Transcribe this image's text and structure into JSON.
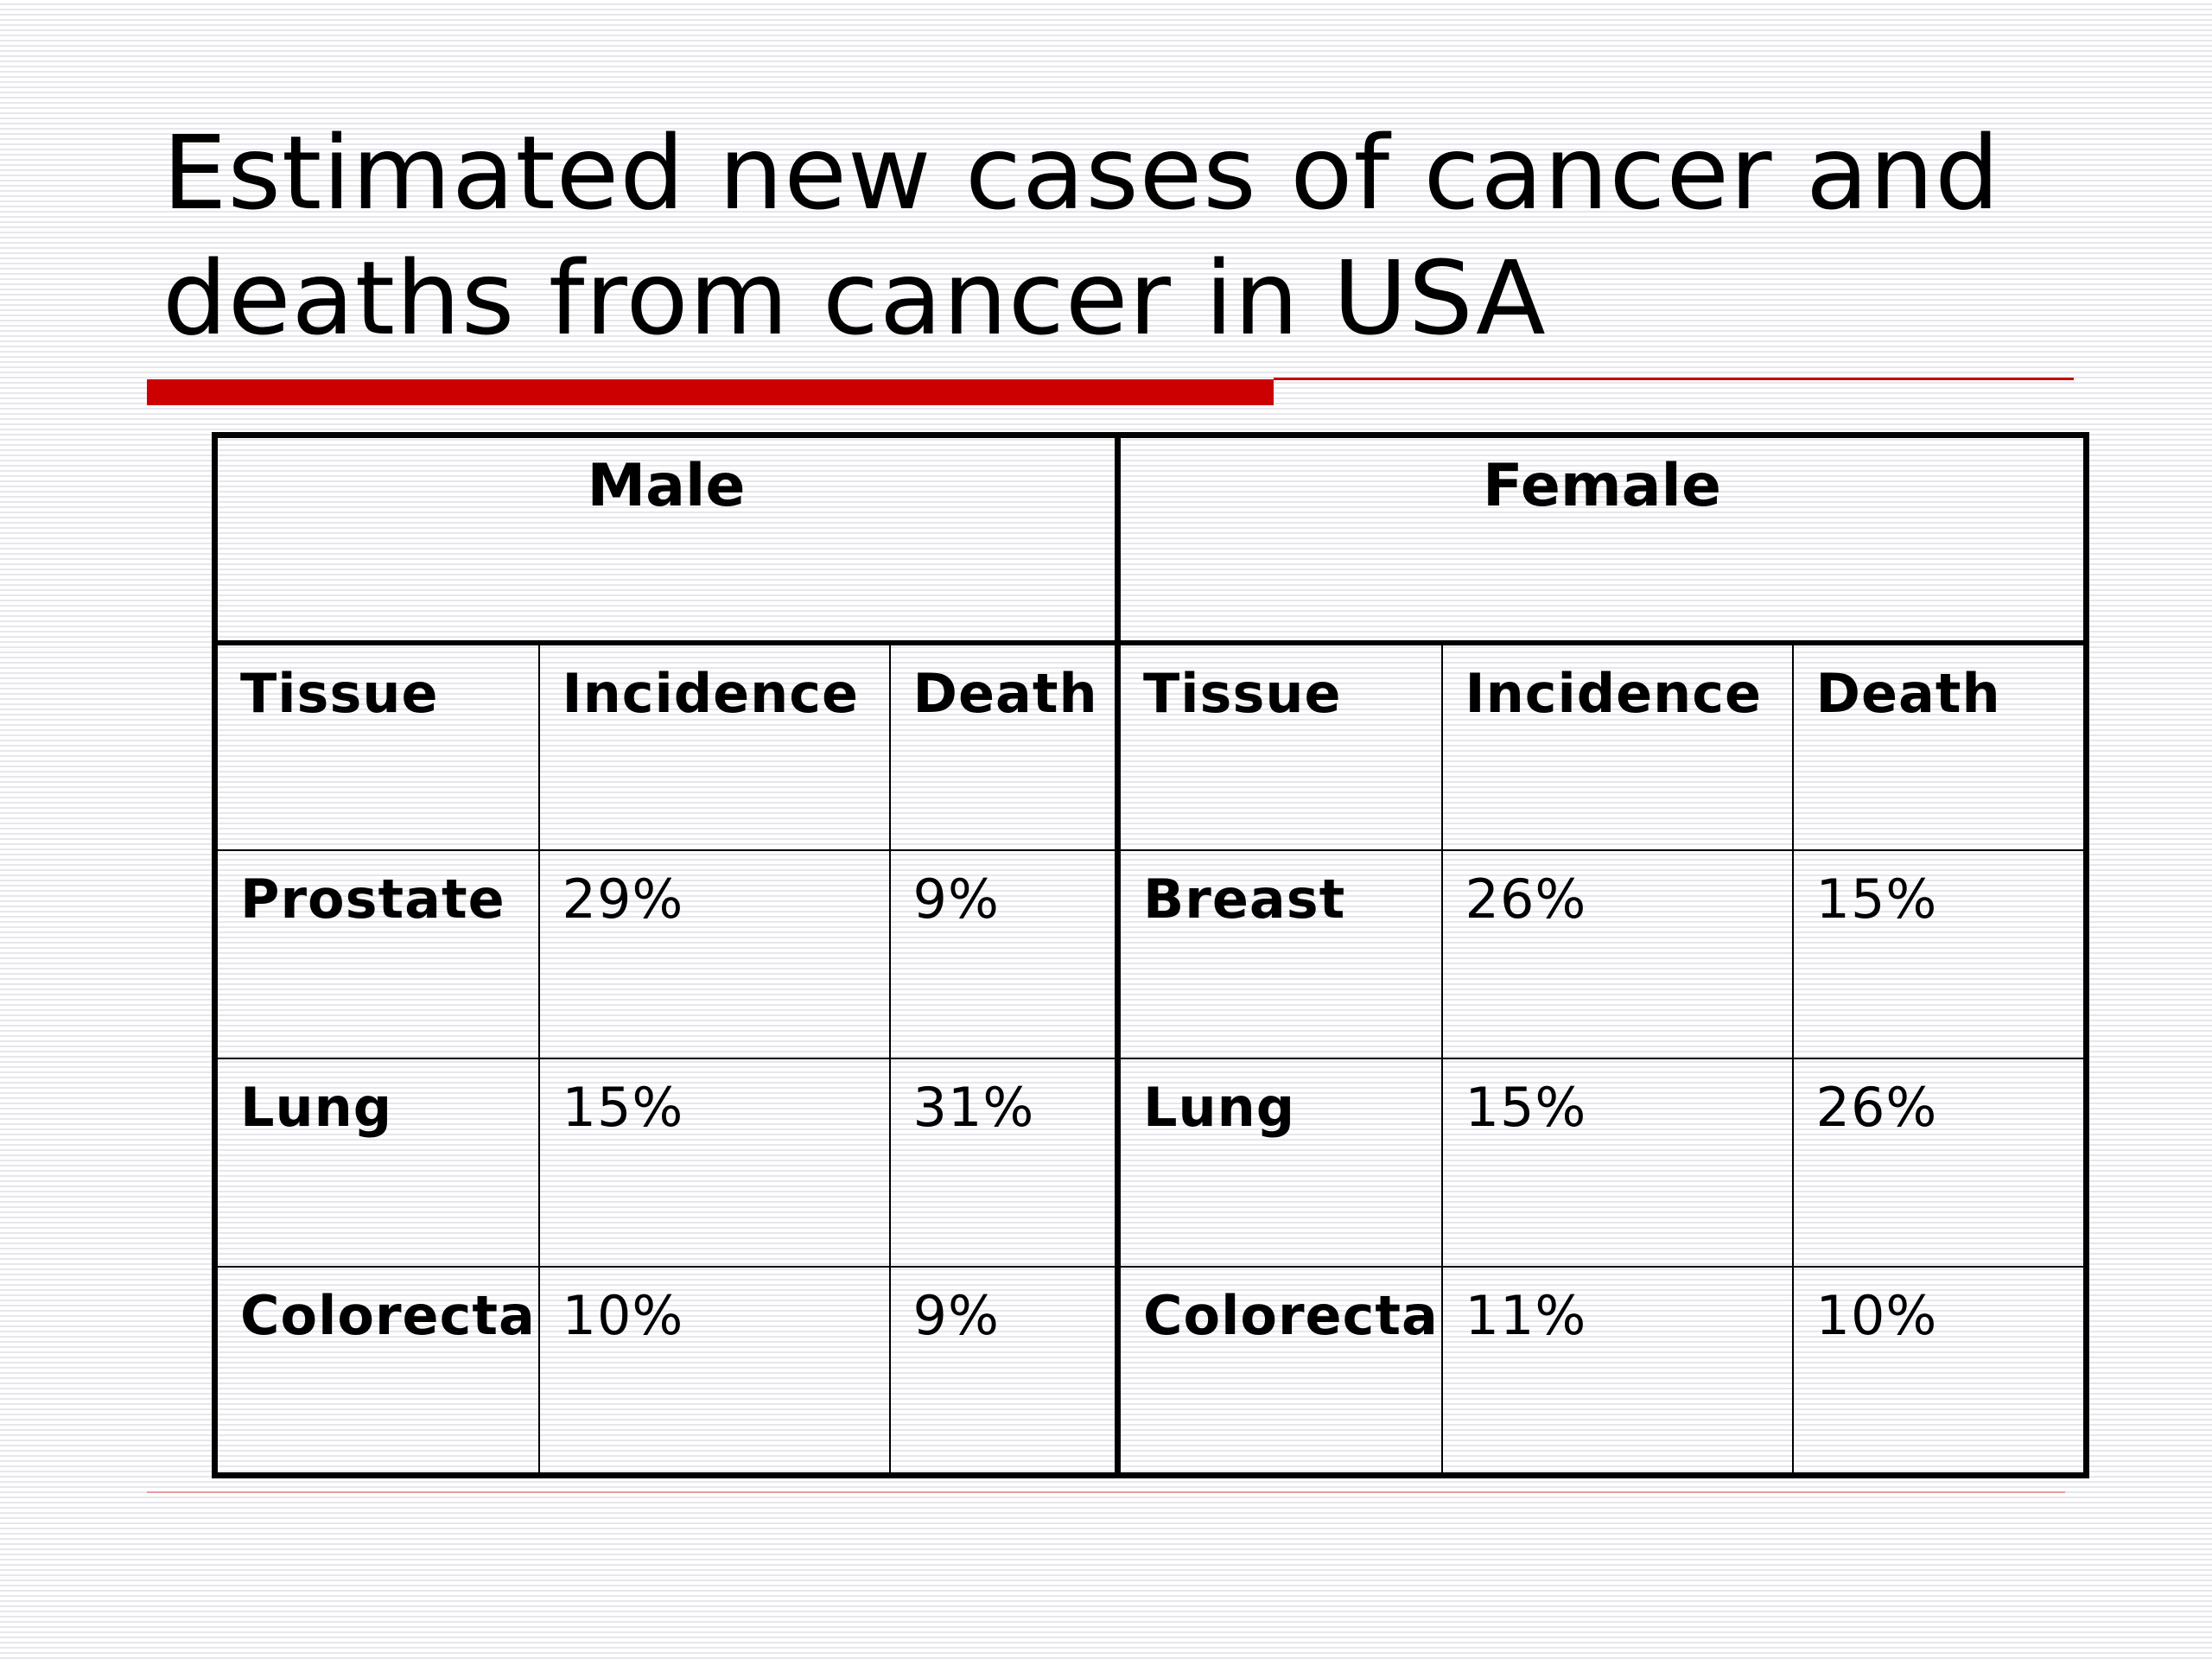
{
  "slide": {
    "title": "Estimated new cases of cancer and deaths from cancer in USA",
    "accent_color": "#cc0000",
    "rule_color": "#e06060"
  },
  "table": {
    "groups": [
      "Male",
      "Female"
    ],
    "columns": [
      "Tissue",
      "Incidence",
      "Death",
      "Tissue",
      "Incidence",
      "Death"
    ],
    "rows": [
      [
        "Prostate",
        "29%",
        "9%",
        "Breast",
        "26%",
        "15%"
      ],
      [
        "Lung",
        "15%",
        "31%",
        "Lung",
        "15%",
        "26%"
      ],
      [
        "Colorectal",
        "10%",
        "9%",
        "Colorectal",
        "11%",
        "10%"
      ]
    ]
  }
}
